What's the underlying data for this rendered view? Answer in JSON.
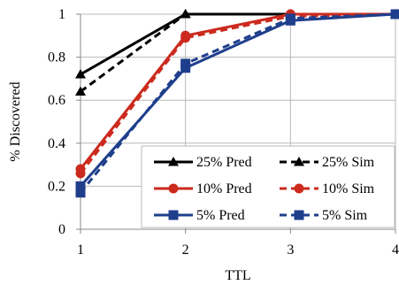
{
  "chart_data": {
    "type": "line",
    "xlabel": "TTL",
    "ylabel": "% Discovered",
    "x": [
      1,
      2,
      3,
      4
    ],
    "xlim": [
      1,
      4
    ],
    "ylim": [
      0,
      1
    ],
    "x_ticks": [
      "1",
      "2",
      "3",
      "4"
    ],
    "y_ticks": [
      "0",
      "0.2",
      "0.4",
      "0.6",
      "0.8",
      "1"
    ],
    "grid": "horizontal",
    "legend_position": "bottom-right",
    "series": [
      {
        "name": "25% Pred",
        "values": [
          0.72,
          1.0,
          1.0,
          1.0
        ],
        "color": "#000000",
        "dash": "solid",
        "marker": "triangle"
      },
      {
        "name": "25% Sim",
        "values": [
          0.64,
          1.0,
          1.0,
          1.0
        ],
        "color": "#000000",
        "dash": "dashed",
        "marker": "triangle"
      },
      {
        "name": "10% Pred",
        "values": [
          0.28,
          0.9,
          1.0,
          1.0
        ],
        "color": "#cc2a1e",
        "dash": "solid",
        "marker": "circle"
      },
      {
        "name": "10% Sim",
        "values": [
          0.26,
          0.89,
          0.99,
          1.0
        ],
        "color": "#cc2a1e",
        "dash": "dashed",
        "marker": "circle"
      },
      {
        "name": "5% Pred",
        "values": [
          0.2,
          0.75,
          0.97,
          1.0
        ],
        "color": "#1f3f8c",
        "dash": "solid",
        "marker": "square"
      },
      {
        "name": "5% Sim",
        "values": [
          0.17,
          0.77,
          0.98,
          1.0
        ],
        "color": "#1f3f8c",
        "dash": "dashed",
        "marker": "square"
      }
    ]
  }
}
